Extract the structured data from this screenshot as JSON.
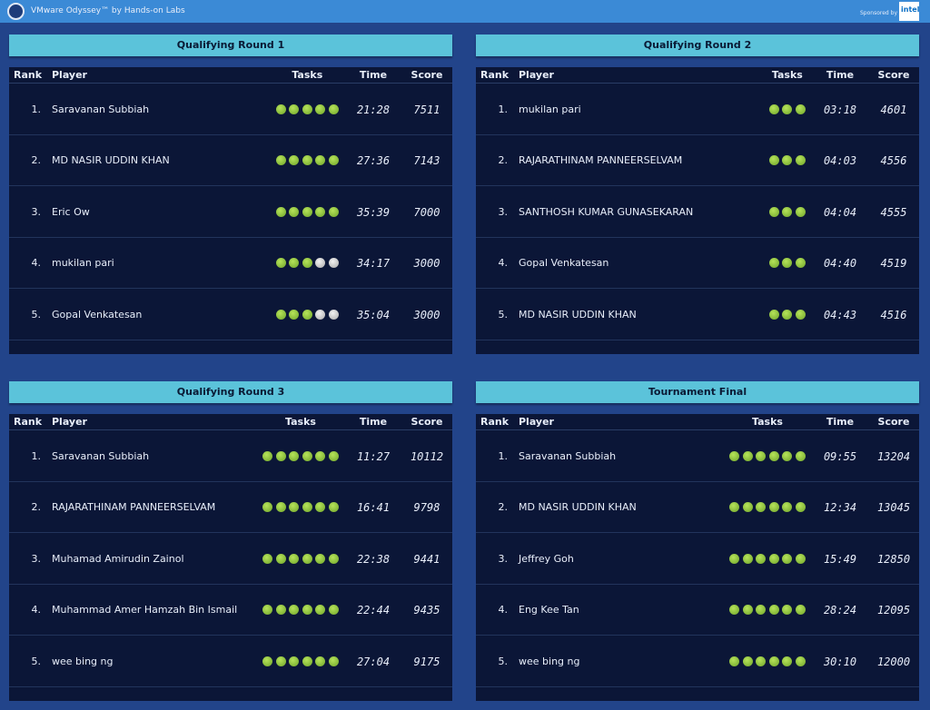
{
  "header": {
    "title": "VMware Odyssey™ by Hands-on Labs",
    "sponsor": "Sponsored by",
    "sponsor_logo": "intel"
  },
  "panels": [
    {
      "title": "Qualifying Round 1",
      "columns": [
        "Rank",
        "Player",
        "Tasks",
        "Time",
        "Score"
      ],
      "rows": [
        {
          "rank": "1.",
          "player": "Saravanan Subbiah",
          "tasks_done": 5,
          "tasks_total": 5,
          "time": "21:28",
          "score": 7511
        },
        {
          "rank": "2.",
          "player": "MD NASIR UDDIN KHAN",
          "tasks_done": 5,
          "tasks_total": 5,
          "time": "27:36",
          "score": 7143
        },
        {
          "rank": "3.",
          "player": "Eric Ow",
          "tasks_done": 5,
          "tasks_total": 5,
          "time": "35:39",
          "score": 7000
        },
        {
          "rank": "4.",
          "player": "mukilan pari",
          "tasks_done": 3,
          "tasks_total": 5,
          "time": "34:17",
          "score": 3000
        },
        {
          "rank": "5.",
          "player": "Gopal Venkatesan",
          "tasks_done": 3,
          "tasks_total": 5,
          "time": "35:04",
          "score": 3000
        }
      ]
    },
    {
      "title": "Qualifying Round 2",
      "columns": [
        "Rank",
        "Player",
        "Tasks",
        "Time",
        "Score"
      ],
      "rows": [
        {
          "rank": "1.",
          "player": "mukilan pari",
          "tasks_done": 3,
          "tasks_total": 3,
          "time": "03:18",
          "score": 4601
        },
        {
          "rank": "2.",
          "player": "RAJARATHINAM PANNEERSELVAM",
          "tasks_done": 3,
          "tasks_total": 3,
          "time": "04:03",
          "score": 4556
        },
        {
          "rank": "3.",
          "player": "SANTHOSH KUMAR GUNASEKARAN",
          "tasks_done": 3,
          "tasks_total": 3,
          "time": "04:04",
          "score": 4555
        },
        {
          "rank": "4.",
          "player": "Gopal Venkatesan",
          "tasks_done": 3,
          "tasks_total": 3,
          "time": "04:40",
          "score": 4519
        },
        {
          "rank": "5.",
          "player": "MD NASIR UDDIN KHAN",
          "tasks_done": 3,
          "tasks_total": 3,
          "time": "04:43",
          "score": 4516
        }
      ]
    },
    {
      "title": "Qualifying Round 3",
      "columns": [
        "Rank",
        "Player",
        "Tasks",
        "Time",
        "Score"
      ],
      "rows": [
        {
          "rank": "1.",
          "player": "Saravanan Subbiah",
          "tasks_done": 6,
          "tasks_total": 6,
          "time": "11:27",
          "score": 10112
        },
        {
          "rank": "2.",
          "player": "RAJARATHINAM PANNEERSELVAM",
          "tasks_done": 6,
          "tasks_total": 6,
          "time": "16:41",
          "score": 9798
        },
        {
          "rank": "3.",
          "player": "Muhamad Amirudin Zainol",
          "tasks_done": 6,
          "tasks_total": 6,
          "time": "22:38",
          "score": 9441
        },
        {
          "rank": "4.",
          "player": "Muhammad Amer Hamzah Bin Ismail",
          "tasks_done": 6,
          "tasks_total": 6,
          "time": "22:44",
          "score": 9435
        },
        {
          "rank": "5.",
          "player": "wee bing ng",
          "tasks_done": 6,
          "tasks_total": 6,
          "time": "27:04",
          "score": 9175
        }
      ]
    },
    {
      "title": "Tournament Final",
      "columns": [
        "Rank",
        "Player",
        "Tasks",
        "Time",
        "Score"
      ],
      "rows": [
        {
          "rank": "1.",
          "player": "Saravanan Subbiah",
          "tasks_done": 6,
          "tasks_total": 6,
          "time": "09:55",
          "score": 13204
        },
        {
          "rank": "2.",
          "player": "MD NASIR UDDIN KHAN",
          "tasks_done": 6,
          "tasks_total": 6,
          "time": "12:34",
          "score": 13045
        },
        {
          "rank": "3.",
          "player": "Jeffrey Goh",
          "tasks_done": 6,
          "tasks_total": 6,
          "time": "15:49",
          "score": 12850
        },
        {
          "rank": "4.",
          "player": "Eng Kee Tan",
          "tasks_done": 6,
          "tasks_total": 6,
          "time": "28:24",
          "score": 12095
        },
        {
          "rank": "5.",
          "player": "wee bing ng",
          "tasks_done": 6,
          "tasks_total": 6,
          "time": "30:10",
          "score": 12000
        }
      ]
    }
  ]
}
